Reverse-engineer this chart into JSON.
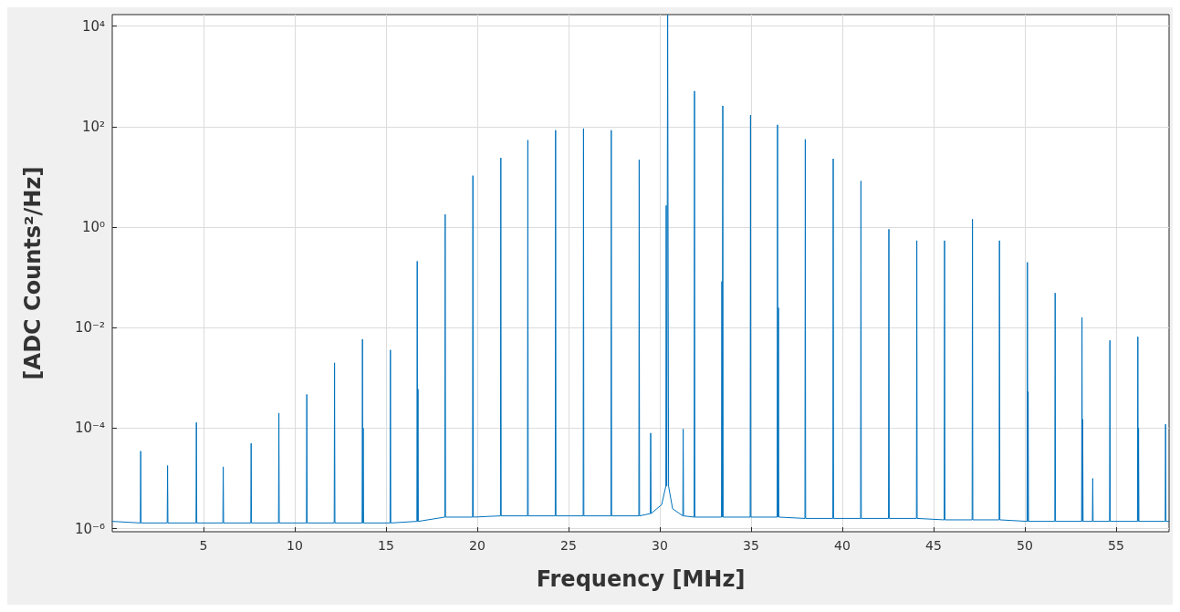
{
  "chart_data": {
    "type": "line",
    "xlabel": "Frequency [MHz]",
    "ylabel": "[ADC Counts²/Hz]",
    "log": "y",
    "grid": true,
    "xlim": [
      0,
      57.9
    ],
    "ylim": [
      8.7e-07,
      17000
    ],
    "xticks": [
      5,
      10,
      15,
      20,
      25,
      30,
      35,
      40,
      45,
      50,
      55
    ],
    "yticks": [
      {
        "value": 1e-06,
        "label": "10⁻⁶"
      },
      {
        "value": 0.0001,
        "label": "10⁻⁴"
      },
      {
        "value": 0.01,
        "label": "10⁻²"
      },
      {
        "value": 1,
        "label": "10⁰"
      },
      {
        "value": 100,
        "label": "10²"
      },
      {
        "value": 10000,
        "label": "10⁴"
      }
    ],
    "series": [
      {
        "color": "#0072bd",
        "x": [
          0,
          1.54,
          1.56,
          1.58,
          3.01,
          3.03,
          3.05,
          4.59,
          4.61,
          4.63,
          6.06,
          6.08,
          6.1,
          7.59,
          7.61,
          7.63,
          9.11,
          9.13,
          9.15,
          10.64,
          10.66,
          10.68,
          12.16,
          12.18,
          12.2,
          13.69,
          13.71,
          13.73,
          13.75,
          13.77,
          15.22,
          15.24,
          15.26,
          16.69,
          16.71,
          16.73,
          16.75,
          16.77,
          18.22,
          18.24,
          18.26,
          19.74,
          19.76,
          19.78,
          21.27,
          21.29,
          21.31,
          22.75,
          22.77,
          22.79,
          24.27,
          24.29,
          24.31,
          25.8,
          25.82,
          25.84,
          27.32,
          27.34,
          27.36,
          28.85,
          28.87,
          28.89,
          29.48,
          29.5,
          29.52,
          30.1,
          30.33,
          30.35,
          30.38,
          30.43,
          30.48,
          30.7,
          31.26,
          31.28,
          31.3,
          31.88,
          31.9,
          31.92,
          33.38,
          33.4,
          33.42,
          33.45,
          33.47,
          34.95,
          34.97,
          34.99,
          36.43,
          36.45,
          36.47,
          36.5,
          36.52,
          37.95,
          37.97,
          37.99,
          39.48,
          39.5,
          39.52,
          41,
          41.02,
          41.04,
          42.53,
          42.55,
          42.57,
          44.06,
          44.08,
          44.1,
          45.58,
          45.6,
          45.62,
          47.11,
          47.13,
          47.15,
          48.59,
          48.61,
          48.63,
          50.12,
          50.14,
          50.16,
          50.18,
          50.2,
          51.64,
          51.66,
          51.68,
          53.11,
          53.13,
          53.15,
          53.17,
          53.19,
          53.7,
          53.72,
          53.74,
          54.64,
          54.66,
          54.68,
          56.17,
          56.19,
          56.21,
          56.23,
          56.25,
          57.69,
          57.71,
          57.73,
          57.9
        ],
        "values": [
          1.4e-06,
          1.3e-06,
          3.5e-05,
          1.3e-06,
          1.3e-06,
          1.8e-05,
          1.3e-06,
          1.3e-06,
          0.00013,
          1.3e-06,
          1.3e-06,
          1.7e-05,
          1.3e-06,
          1.3e-06,
          5e-05,
          1.3e-06,
          1.3e-06,
          0.0002,
          1.3e-06,
          1.3e-06,
          0.00047,
          1.3e-06,
          1.3e-06,
          0.002,
          1.3e-06,
          1.3e-06,
          0.0059,
          1.3e-06,
          0.0001,
          1.3e-06,
          1.3e-06,
          0.0036,
          1.3e-06,
          1.4e-06,
          0.21,
          1.4e-06,
          0.0006,
          1.4e-06,
          1.7e-06,
          1.8,
          1.7e-06,
          1.7e-06,
          10.6,
          1.7e-06,
          1.8e-06,
          24,
          1.8e-06,
          1.8e-06,
          54,
          1.8e-06,
          1.8e-06,
          85,
          1.8e-06,
          1.8e-06,
          92,
          1.8e-06,
          1.8e-06,
          85,
          1.8e-06,
          1.8e-06,
          22,
          1.8e-06,
          2e-06,
          8e-05,
          2e-06,
          3e-06,
          7e-06,
          2.7,
          7e-06,
          17000,
          7e-06,
          2.5e-06,
          1.8e-06,
          9.6e-05,
          1.8e-06,
          1.7e-06,
          512,
          1.7e-06,
          1.7e-06,
          0.083,
          1.7e-06,
          260,
          1.7e-06,
          1.7e-06,
          170,
          1.7e-06,
          1.7e-06,
          109,
          1.7e-06,
          0.025,
          1.7e-06,
          1.6e-06,
          56,
          1.6e-06,
          1.6e-06,
          23,
          1.6e-06,
          1.6e-06,
          8.3,
          1.6e-06,
          1.6e-06,
          0.91,
          1.6e-06,
          1.6e-06,
          0.54,
          1.6e-06,
          1.5e-06,
          0.54,
          1.5e-06,
          1.5e-06,
          1.44,
          1.5e-06,
          1.5e-06,
          0.54,
          1.5e-06,
          1.4e-06,
          0.2,
          1.4e-06,
          0.00053,
          1.4e-06,
          1.4e-06,
          0.049,
          1.4e-06,
          1.4e-06,
          0.016,
          1.4e-06,
          0.00015,
          1.4e-06,
          1.4e-06,
          1e-05,
          1.4e-06,
          1.4e-06,
          0.0056,
          1.4e-06,
          1.4e-06,
          0.0066,
          1.4e-06,
          0.0001,
          1.4e-06,
          1.4e-06,
          0.00012,
          1.4e-06,
          1.4e-06
        ]
      }
    ]
  }
}
